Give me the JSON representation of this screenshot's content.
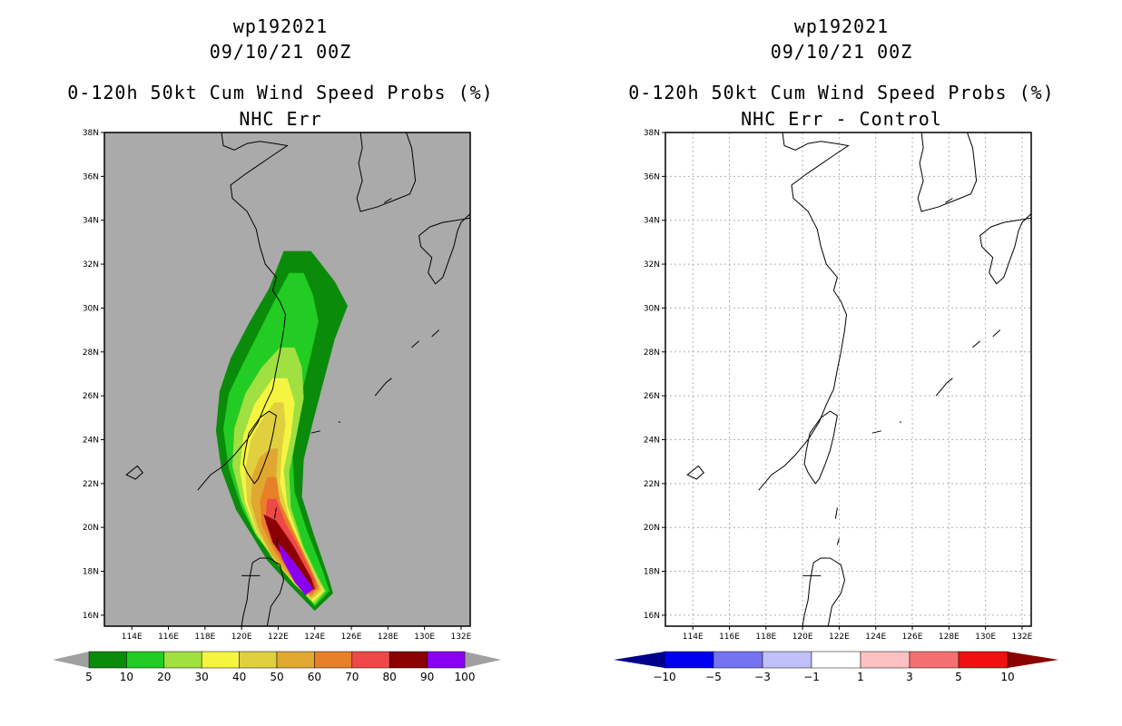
{
  "chart_data": [
    {
      "type": "heatmap",
      "storm_id": "wp192021",
      "date": "09/10/21 00Z",
      "title": "0-120h 50kt Cum Wind Speed Probs (%)",
      "subtitle": "NHC Err",
      "x_ticks": [
        "114E",
        "116E",
        "118E",
        "120E",
        "122E",
        "124E",
        "126E",
        "128E",
        "130E",
        "132E"
      ],
      "y_ticks": [
        "16N",
        "18N",
        "20N",
        "22N",
        "24N",
        "26N",
        "28N",
        "30N",
        "32N",
        "34N",
        "36N",
        "38N"
      ],
      "xlim": [
        112.5,
        132.5
      ],
      "ylim": [
        15.5,
        38.0
      ],
      "grid": false,
      "background_color": "#aaaaaa",
      "contour_levels": [
        5,
        10,
        20,
        30,
        40,
        50,
        60,
        70,
        80,
        90,
        100
      ],
      "colorbar_labels": [
        "5",
        "10",
        "20",
        "30",
        "40",
        "50",
        "60",
        "70",
        "80",
        "90",
        "100"
      ],
      "colors": [
        "#0a8c0a",
        "#22cc22",
        "#a0e040",
        "#f5f541",
        "#e0d040",
        "#e0a830",
        "#e88028",
        "#ee4848",
        "#8b0000",
        "#8a00f0"
      ],
      "extend_colors": [
        "#a0a0a0",
        "#a0a0a0"
      ]
    },
    {
      "type": "heatmap",
      "storm_id": "wp192021",
      "date": "09/10/21 00Z",
      "title": "0-120h 50kt Cum Wind Speed Probs (%)",
      "subtitle": "NHC Err - Control",
      "x_ticks": [
        "114E",
        "116E",
        "118E",
        "120E",
        "122E",
        "124E",
        "126E",
        "128E",
        "130E",
        "132E"
      ],
      "y_ticks": [
        "16N",
        "18N",
        "20N",
        "22N",
        "24N",
        "26N",
        "28N",
        "30N",
        "32N",
        "34N",
        "36N",
        "38N"
      ],
      "xlim": [
        112.5,
        132.5
      ],
      "ylim": [
        15.5,
        38.0
      ],
      "grid": true,
      "background_color": "#ffffff",
      "contour_levels": [
        -10,
        -5,
        -3,
        -1,
        1,
        3,
        5,
        10
      ],
      "colorbar_labels": [
        "-10",
        "-5",
        "-3",
        "-1",
        "1",
        "3",
        "5",
        "10"
      ],
      "colors": [
        "#0000f0",
        "#7474f0",
        "#c0c0f8",
        "#ffffff",
        "#fcc0c0",
        "#f47070",
        "#f01010"
      ],
      "extend_colors": [
        "#00008b",
        "#8b0000"
      ]
    }
  ]
}
